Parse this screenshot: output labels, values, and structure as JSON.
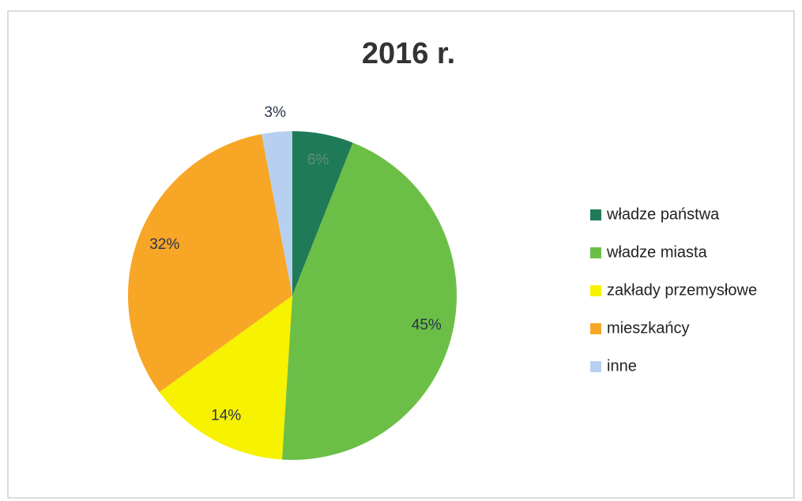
{
  "chart_data": {
    "type": "pie",
    "title": "2016 r.",
    "categories": [
      "władze państwa",
      "władze miasta",
      "zakłady przemysłowe",
      "mieszkańcy",
      "inne"
    ],
    "values": [
      6,
      45,
      14,
      32,
      3
    ],
    "value_labels": [
      "6%",
      "45%",
      "14%",
      "32%",
      "3%"
    ],
    "colors": [
      "#1f7a58",
      "#6cbf46",
      "#f6f200",
      "#f7a626",
      "#b7d0ef"
    ],
    "legend": "right"
  }
}
